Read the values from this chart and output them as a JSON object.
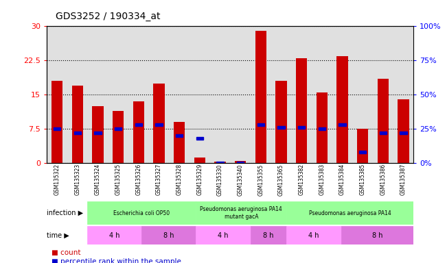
{
  "title": "GDS3252 / 190334_at",
  "samples": [
    "GSM135322",
    "GSM135323",
    "GSM135324",
    "GSM135325",
    "GSM135326",
    "GSM135327",
    "GSM135328",
    "GSM135329",
    "GSM135330",
    "GSM135340",
    "GSM135355",
    "GSM135365",
    "GSM135382",
    "GSM135383",
    "GSM135384",
    "GSM135385",
    "GSM135386",
    "GSM135387"
  ],
  "counts": [
    18.0,
    17.0,
    12.5,
    11.5,
    13.5,
    17.5,
    9.0,
    1.2,
    0.3,
    0.5,
    29.0,
    18.0,
    23.0,
    15.5,
    23.5,
    7.5,
    18.5,
    14.0
  ],
  "percentiles": [
    25,
    22,
    22,
    25,
    28,
    28,
    20,
    18,
    0,
    0,
    28,
    26,
    26,
    25,
    28,
    8,
    22,
    22
  ],
  "bar_color": "#cc0000",
  "square_color": "#0000cc",
  "ylim_left": [
    0,
    30
  ],
  "ylim_right": [
    0,
    100
  ],
  "yticks_left": [
    0,
    7.5,
    15,
    22.5,
    30
  ],
  "yticks_right": [
    0,
    25,
    50,
    75,
    100
  ],
  "ytick_labels_left": [
    "0",
    "7.5",
    "15",
    "22.5",
    "30"
  ],
  "ytick_labels_right": [
    "0%",
    "25%",
    "50%",
    "75%",
    "100%"
  ],
  "infection_groups": [
    {
      "label": "Escherichia coli OP50",
      "start": 0,
      "end": 6,
      "color": "#99ff99"
    },
    {
      "label": "Pseudomonas aeruginosa PA14\nmutant gacA",
      "start": 6,
      "end": 11,
      "color": "#99ff99"
    },
    {
      "label": "Pseudomonas aeruginosa PA14",
      "start": 11,
      "end": 18,
      "color": "#99ff99"
    }
  ],
  "time_groups": [
    {
      "label": "4 h",
      "start": 0,
      "end": 3,
      "color": "#ff99ff"
    },
    {
      "label": "8 h",
      "start": 3,
      "end": 6,
      "color": "#dd77dd"
    },
    {
      "label": "4 h",
      "start": 6,
      "end": 9,
      "color": "#ff99ff"
    },
    {
      "label": "8 h",
      "start": 9,
      "end": 11,
      "color": "#dd77dd"
    },
    {
      "label": "4 h",
      "start": 11,
      "end": 14,
      "color": "#ff99ff"
    },
    {
      "label": "8 h",
      "start": 14,
      "end": 18,
      "color": "#dd77dd"
    }
  ],
  "infection_label": "infection",
  "time_label": "time",
  "legend_count_label": "count",
  "legend_pct_label": "percentile rank within the sample",
  "plot_bg": "#e0e0e0"
}
